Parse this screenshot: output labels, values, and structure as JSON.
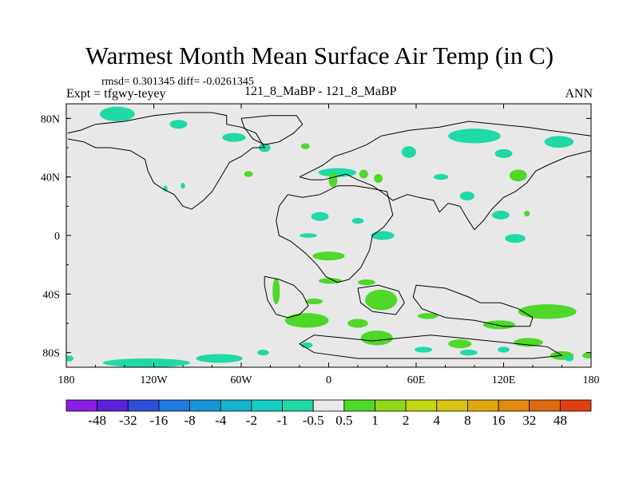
{
  "header": {
    "title": "Warmest Month Mean Surface Air Temp (in C)",
    "stats": "rmsd= 0.301345 diff= -0.0261345",
    "experiment": "Expt = tfgwy-teyey",
    "center_label": "121_8_MaBP - 121_8_MaBP",
    "season": "ANN"
  },
  "chart_data": {
    "type": "heatmap",
    "title": "Warmest Month Mean Surface Air Temp (in C)",
    "xlabel": "",
    "ylabel": "",
    "xlim": [
      -180,
      180
    ],
    "ylim": [
      -90,
      90
    ],
    "x_ticks": [
      {
        "value": -180,
        "label": "180"
      },
      {
        "value": -120,
        "label": "120W"
      },
      {
        "value": -60,
        "label": "60W"
      },
      {
        "value": 0,
        "label": "0"
      },
      {
        "value": 60,
        "label": "60E"
      },
      {
        "value": 120,
        "label": "120E"
      },
      {
        "value": 180,
        "label": "180"
      }
    ],
    "y_ticks": [
      {
        "value": 80,
        "label": "80N"
      },
      {
        "value": 40,
        "label": "40N"
      },
      {
        "value": 0,
        "label": "0"
      },
      {
        "value": -40,
        "label": "40S"
      },
      {
        "value": -80,
        "label": "80S"
      }
    ],
    "colorbar": {
      "colors": [
        "#8a1de6",
        "#5a21d8",
        "#2c50d8",
        "#1f79e0",
        "#1897d6",
        "#13b4d0",
        "#15ccc2",
        "#1fd9a6",
        "#e8e8e8",
        "#4fd82a",
        "#8fd81a",
        "#c2d814",
        "#d8c412",
        "#e0a810",
        "#e08a10",
        "#e06a10",
        "#e04010"
      ],
      "labels": [
        "-48",
        "-32",
        "-16",
        "-8",
        "-4",
        "-2",
        "-1",
        "-0.5",
        "0.5",
        "1",
        "2",
        "4",
        "8",
        "16",
        "32",
        "48"
      ]
    },
    "background_color": "#e8e8e8",
    "negative_color": "#1fd9a6",
    "positive_color": "#4fd82a",
    "regions": [
      {
        "sign": -1,
        "lon": -145,
        "lat": 83,
        "rlon": 12,
        "rlat": 5
      },
      {
        "sign": -1,
        "lon": -103,
        "lat": 76,
        "rlon": 6,
        "rlat": 3
      },
      {
        "sign": -1,
        "lon": -65,
        "lat": 67,
        "rlon": 8,
        "rlat": 3
      },
      {
        "sign": -1,
        "lon": -44,
        "lat": 60,
        "rlon": 4,
        "rlat": 3
      },
      {
        "sign": 1,
        "lon": -16,
        "lat": 61,
        "rlon": 3,
        "rlat": 2
      },
      {
        "sign": 1,
        "lon": -55,
        "lat": 42,
        "rlon": 3,
        "rlat": 2
      },
      {
        "sign": -1,
        "lon": -112,
        "lat": 32,
        "rlon": 1.5,
        "rlat": 2
      },
      {
        "sign": -1,
        "lon": -100,
        "lat": 34,
        "rlon": 1.5,
        "rlat": 2
      },
      {
        "sign": -1,
        "lon": 6,
        "lat": 43,
        "rlon": 13,
        "rlat": 3
      },
      {
        "sign": 1,
        "lon": 3,
        "lat": 38,
        "rlon": 3,
        "rlat": 5
      },
      {
        "sign": 1,
        "lon": 24,
        "lat": 42,
        "rlon": 3,
        "rlat": 3
      },
      {
        "sign": 1,
        "lon": 34,
        "lat": 39,
        "rlon": 3,
        "rlat": 3
      },
      {
        "sign": -1,
        "lon": 55,
        "lat": 57,
        "rlon": 5,
        "rlat": 4
      },
      {
        "sign": -1,
        "lon": 77,
        "lat": 40,
        "rlon": 5,
        "rlat": 2
      },
      {
        "sign": -1,
        "lon": 100,
        "lat": 68,
        "rlon": 18,
        "rlat": 5
      },
      {
        "sign": -1,
        "lon": 120,
        "lat": 56,
        "rlon": 6,
        "rlat": 3
      },
      {
        "sign": -1,
        "lon": 158,
        "lat": 64,
        "rlon": 10,
        "rlat": 4
      },
      {
        "sign": 1,
        "lon": 130,
        "lat": 41,
        "rlon": 6,
        "rlat": 4
      },
      {
        "sign": -1,
        "lon": 95,
        "lat": 27,
        "rlon": 5,
        "rlat": 3
      },
      {
        "sign": -1,
        "lon": 118,
        "lat": 14,
        "rlon": 6,
        "rlat": 3
      },
      {
        "sign": -1,
        "lon": 128,
        "lat": -2,
        "rlon": 7,
        "rlat": 3
      },
      {
        "sign": 1,
        "lon": 136,
        "lat": 15,
        "rlon": 2,
        "rlat": 2
      },
      {
        "sign": -1,
        "lon": -6,
        "lat": 13,
        "rlon": 6,
        "rlat": 3
      },
      {
        "sign": -1,
        "lon": 20,
        "lat": 10,
        "rlon": 4,
        "rlat": 2
      },
      {
        "sign": -1,
        "lon": 37,
        "lat": 0,
        "rlon": 8,
        "rlat": 3
      },
      {
        "sign": -1,
        "lon": -14,
        "lat": 0,
        "rlon": 6,
        "rlat": 1.5
      },
      {
        "sign": 1,
        "lon": 0,
        "lat": -14,
        "rlon": 11,
        "rlat": 3
      },
      {
        "sign": 1,
        "lon": -36,
        "lat": -38,
        "rlon": 2.5,
        "rlat": 9
      },
      {
        "sign": 1,
        "lon": 1,
        "lat": -31,
        "rlon": 8,
        "rlat": 2
      },
      {
        "sign": 1,
        "lon": 26,
        "lat": -32,
        "rlon": 6,
        "rlat": 2
      },
      {
        "sign": 1,
        "lon": -10,
        "lat": -45,
        "rlon": 6,
        "rlat": 2
      },
      {
        "sign": 1,
        "lon": 36,
        "lat": -44,
        "rlon": 11,
        "rlat": 7
      },
      {
        "sign": 1,
        "lon": -15,
        "lat": -58,
        "rlon": 15,
        "rlat": 5
      },
      {
        "sign": 1,
        "lon": 20,
        "lat": -60,
        "rlon": 7,
        "rlat": 3
      },
      {
        "sign": 1,
        "lon": 33,
        "lat": -70,
        "rlon": 11,
        "rlat": 5
      },
      {
        "sign": 1,
        "lon": 68,
        "lat": -55,
        "rlon": 7,
        "rlat": 2
      },
      {
        "sign": 1,
        "lon": 90,
        "lat": -74,
        "rlon": 8,
        "rlat": 3
      },
      {
        "sign": 1,
        "lon": 117,
        "lat": -61,
        "rlon": 11,
        "rlat": 3
      },
      {
        "sign": 1,
        "lon": 150,
        "lat": -52,
        "rlon": 20,
        "rlat": 5
      },
      {
        "sign": 1,
        "lon": 137,
        "lat": -73,
        "rlon": 10,
        "rlat": 3
      },
      {
        "sign": 1,
        "lon": 160,
        "lat": -82,
        "rlon": 8,
        "rlat": 3
      },
      {
        "sign": 1,
        "lon": 178,
        "lat": -82,
        "rlon": 4,
        "rlat": 2
      },
      {
        "sign": -1,
        "lon": -15,
        "lat": -75,
        "rlon": 4,
        "rlat": 2
      },
      {
        "sign": -1,
        "lon": 65,
        "lat": -78,
        "rlon": 6,
        "rlat": 2
      },
      {
        "sign": -1,
        "lon": 96,
        "lat": -80,
        "rlon": 6,
        "rlat": 2
      },
      {
        "sign": -1,
        "lon": 120,
        "lat": -78,
        "rlon": 4,
        "rlat": 2
      },
      {
        "sign": -1,
        "lon": -125,
        "lat": -87,
        "rlon": 30,
        "rlat": 3
      },
      {
        "sign": -1,
        "lon": -75,
        "lat": -84,
        "rlon": 16,
        "rlat": 3
      },
      {
        "sign": -1,
        "lon": -45,
        "lat": -80,
        "rlon": 4,
        "rlat": 2
      },
      {
        "sign": -1,
        "lon": -178,
        "lat": -84,
        "rlon": 3,
        "rlat": 2
      },
      {
        "sign": -1,
        "lon": 165,
        "lat": -84,
        "rlon": 3,
        "rlat": 2
      }
    ],
    "coastlines": [
      [
        [
          -179,
          70
        ],
        [
          -170,
          72
        ],
        [
          -160,
          76
        ],
        [
          -140,
          78
        ],
        [
          -120,
          82
        ],
        [
          -100,
          84
        ],
        [
          -80,
          84
        ],
        [
          -70,
          82
        ],
        [
          -70,
          76
        ],
        [
          -60,
          74
        ],
        [
          -50,
          70
        ],
        [
          -44,
          60
        ],
        [
          -52,
          60
        ],
        [
          -60,
          54
        ],
        [
          -68,
          50
        ],
        [
          -74,
          40
        ],
        [
          -80,
          30
        ],
        [
          -86,
          24
        ],
        [
          -94,
          18
        ],
        [
          -100,
          20
        ],
        [
          -106,
          28
        ],
        [
          -114,
          32
        ],
        [
          -120,
          36
        ],
        [
          -124,
          44
        ],
        [
          -126,
          52
        ],
        [
          -136,
          58
        ],
        [
          -150,
          60
        ],
        [
          -160,
          60
        ],
        [
          -168,
          64
        ],
        [
          -179,
          66
        ]
      ],
      [
        [
          -60,
          80
        ],
        [
          -40,
          82
        ],
        [
          -22,
          82
        ],
        [
          -18,
          76
        ],
        [
          -24,
          70
        ],
        [
          -34,
          64
        ],
        [
          -44,
          62
        ],
        [
          -52,
          66
        ],
        [
          -58,
          74
        ],
        [
          -60,
          80
        ]
      ],
      [
        [
          -20,
          40
        ],
        [
          -12,
          44
        ],
        [
          -4,
          48
        ],
        [
          4,
          54
        ],
        [
          16,
          58
        ],
        [
          26,
          62
        ],
        [
          36,
          68
        ],
        [
          56,
          72
        ],
        [
          76,
          74
        ],
        [
          96,
          78
        ],
        [
          116,
          76
        ],
        [
          136,
          74
        ],
        [
          150,
          72
        ],
        [
          166,
          70
        ],
        [
          180,
          68
        ],
        [
          180,
          58
        ],
        [
          164,
          54
        ],
        [
          150,
          48
        ],
        [
          142,
          44
        ],
        [
          136,
          36
        ],
        [
          128,
          30
        ],
        [
          120,
          26
        ],
        [
          112,
          18
        ],
        [
          106,
          10
        ],
        [
          100,
          4
        ],
        [
          96,
          10
        ],
        [
          90,
          20
        ],
        [
          82,
          22
        ],
        [
          76,
          16
        ],
        [
          72,
          24
        ],
        [
          62,
          26
        ],
        [
          54,
          28
        ],
        [
          44,
          24
        ],
        [
          36,
          30
        ],
        [
          30,
          34
        ],
        [
          20,
          38
        ],
        [
          12,
          42
        ],
        [
          4,
          40
        ],
        [
          -4,
          38
        ],
        [
          -12,
          38
        ],
        [
          -20,
          40
        ]
      ],
      [
        [
          -28,
          28
        ],
        [
          -18,
          26
        ],
        [
          -6,
          28
        ],
        [
          6,
          34
        ],
        [
          18,
          34
        ],
        [
          30,
          32
        ],
        [
          40,
          30
        ],
        [
          44,
          14
        ],
        [
          38,
          6
        ],
        [
          30,
          0
        ],
        [
          28,
          -10
        ],
        [
          22,
          -22
        ],
        [
          14,
          -30
        ],
        [
          6,
          -32
        ],
        [
          -2,
          -28
        ],
        [
          -8,
          -20
        ],
        [
          -16,
          -12
        ],
        [
          -26,
          -4
        ],
        [
          -34,
          0
        ],
        [
          -36,
          10
        ],
        [
          -34,
          20
        ],
        [
          -28,
          28
        ]
      ],
      [
        [
          -44,
          -28
        ],
        [
          -34,
          -30
        ],
        [
          -24,
          -34
        ],
        [
          -18,
          -40
        ],
        [
          -14,
          -48
        ],
        [
          -20,
          -54
        ],
        [
          -28,
          -56
        ],
        [
          -36,
          -54
        ],
        [
          -42,
          -44
        ],
        [
          -44,
          -34
        ],
        [
          -44,
          -28
        ]
      ],
      [
        [
          20,
          -36
        ],
        [
          34,
          -34
        ],
        [
          48,
          -38
        ],
        [
          52,
          -46
        ],
        [
          46,
          -54
        ],
        [
          30,
          -52
        ],
        [
          22,
          -46
        ],
        [
          20,
          -36
        ]
      ],
      [
        [
          60,
          -34
        ],
        [
          80,
          -36
        ],
        [
          96,
          -42
        ],
        [
          104,
          -46
        ],
        [
          118,
          -46
        ],
        [
          130,
          -50
        ],
        [
          140,
          -56
        ],
        [
          138,
          -62
        ],
        [
          120,
          -62
        ],
        [
          100,
          -58
        ],
        [
          80,
          -56
        ],
        [
          64,
          -50
        ],
        [
          58,
          -42
        ],
        [
          60,
          -34
        ]
      ],
      [
        [
          -10,
          -68
        ],
        [
          10,
          -70
        ],
        [
          30,
          -72
        ],
        [
          50,
          -70
        ],
        [
          70,
          -68
        ],
        [
          90,
          -70
        ],
        [
          110,
          -72
        ],
        [
          130,
          -74
        ],
        [
          150,
          -76
        ],
        [
          160,
          -82
        ],
        [
          140,
          -84
        ],
        [
          100,
          -84
        ],
        [
          60,
          -84
        ],
        [
          20,
          -84
        ],
        [
          -10,
          -80
        ],
        [
          -20,
          -74
        ],
        [
          -10,
          -68
        ]
      ]
    ]
  }
}
